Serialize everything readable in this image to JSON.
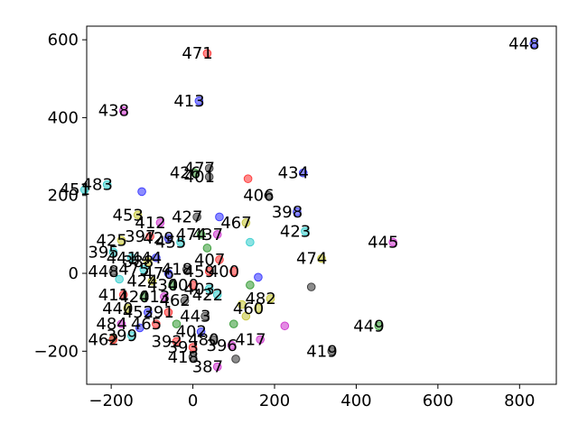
{
  "chart_data": {
    "type": "scatter",
    "title": "",
    "xlabel": "",
    "ylabel": "",
    "xlim": [
      -260,
      890
    ],
    "ylim": [
      -285,
      635
    ],
    "grid": false,
    "xticks": [
      {
        "value": -200,
        "label": "−200"
      },
      {
        "value": 0,
        "label": "0"
      },
      {
        "value": 200,
        "label": "200"
      },
      {
        "value": 400,
        "label": "400"
      },
      {
        "value": 600,
        "label": "600"
      },
      {
        "value": 800,
        "label": "800"
      }
    ],
    "yticks": [
      {
        "value": -200,
        "label": "−200"
      },
      {
        "value": 0,
        "label": "0"
      },
      {
        "value": 200,
        "label": "200"
      },
      {
        "value": 400,
        "label": "400"
      },
      {
        "value": 600,
        "label": "600"
      }
    ],
    "colors": {
      "blue": "#4040ff",
      "red": "#ff4040",
      "green": "#40a040",
      "magenta": "#d040d0",
      "cyan": "#40d0d0",
      "olive": "#c8c840",
      "gray": "#404040"
    },
    "points": [
      {
        "x": 835,
        "y": 590,
        "label": "448",
        "color": "blue"
      },
      {
        "x": 35,
        "y": 565,
        "label": "471",
        "color": "red"
      },
      {
        "x": 15,
        "y": 443,
        "label": "413",
        "color": "blue"
      },
      {
        "x": -170,
        "y": 418,
        "label": "438",
        "color": "magenta"
      },
      {
        "x": 270,
        "y": 258,
        "label": "434",
        "color": "blue"
      },
      {
        "x": 40,
        "y": 248,
        "label": "401",
        "color": "gray"
      },
      {
        "x": 135,
        "y": 243,
        "label": "",
        "color": "red"
      },
      {
        "x": 5,
        "y": 258,
        "label": "426",
        "color": "green"
      },
      {
        "x": 40,
        "y": 270,
        "label": "477",
        "color": "gray"
      },
      {
        "x": -210,
        "y": 228,
        "label": "483",
        "color": "cyan"
      },
      {
        "x": -125,
        "y": 210,
        "label": "",
        "color": "blue"
      },
      {
        "x": -265,
        "y": 215,
        "label": "451",
        "color": "cyan"
      },
      {
        "x": 185,
        "y": 200,
        "label": "406",
        "color": "gray"
      },
      {
        "x": 255,
        "y": 158,
        "label": "398",
        "color": "blue"
      },
      {
        "x": -135,
        "y": 150,
        "label": "453",
        "color": "olive"
      },
      {
        "x": 10,
        "y": 145,
        "label": "427",
        "color": "gray"
      },
      {
        "x": 65,
        "y": 145,
        "label": "",
        "color": "blue"
      },
      {
        "x": 130,
        "y": 130,
        "label": "467",
        "color": "olive"
      },
      {
        "x": -80,
        "y": 130,
        "label": "412",
        "color": "magenta"
      },
      {
        "x": 20,
        "y": 100,
        "label": "474",
        "color": "green"
      },
      {
        "x": 60,
        "y": 100,
        "label": "437",
        "color": "magenta"
      },
      {
        "x": 275,
        "y": 108,
        "label": "423",
        "color": "cyan"
      },
      {
        "x": 140,
        "y": 80,
        "label": "",
        "color": "cyan"
      },
      {
        "x": 490,
        "y": 80,
        "label": "445",
        "color": "magenta"
      },
      {
        "x": -175,
        "y": 85,
        "label": "425",
        "color": "olive"
      },
      {
        "x": -105,
        "y": 95,
        "label": "397",
        "color": "red"
      },
      {
        "x": -60,
        "y": 90,
        "label": "429",
        "color": "blue"
      },
      {
        "x": -30,
        "y": 80,
        "label": "455",
        "color": "cyan"
      },
      {
        "x": 35,
        "y": 65,
        "label": "",
        "color": "green"
      },
      {
        "x": -195,
        "y": 55,
        "label": "395",
        "color": "cyan"
      },
      {
        "x": -150,
        "y": 40,
        "label": "441",
        "color": "cyan"
      },
      {
        "x": -110,
        "y": 30,
        "label": "388",
        "color": "olive"
      },
      {
        "x": -90,
        "y": 40,
        "label": "444",
        "color": "blue"
      },
      {
        "x": 315,
        "y": 38,
        "label": "474",
        "color": "olive"
      },
      {
        "x": 65,
        "y": 35,
        "label": "407",
        "color": "red"
      },
      {
        "x": -120,
        "y": 10,
        "label": "475",
        "color": "cyan"
      },
      {
        "x": -60,
        "y": 0,
        "label": "476",
        "color": "blue"
      },
      {
        "x": -15,
        "y": 10,
        "label": "418",
        "color": "gray"
      },
      {
        "x": 40,
        "y": 5,
        "label": "459",
        "color": "red"
      },
      {
        "x": 100,
        "y": 5,
        "label": "400",
        "color": "red"
      },
      {
        "x": 160,
        "y": -10,
        "label": "",
        "color": "blue"
      },
      {
        "x": -195,
        "y": 5,
        "label": "448",
        "color": "gray"
      },
      {
        "x": -180,
        "y": -15,
        "label": "",
        "color": "cyan"
      },
      {
        "x": -100,
        "y": -20,
        "label": "424",
        "color": "olive"
      },
      {
        "x": -50,
        "y": -30,
        "label": "430",
        "color": "green"
      },
      {
        "x": 0,
        "y": -30,
        "label": "400",
        "color": "red"
      },
      {
        "x": 40,
        "y": -40,
        "label": "403",
        "color": "cyan"
      },
      {
        "x": 140,
        "y": -30,
        "label": "",
        "color": "green"
      },
      {
        "x": 290,
        "y": -35,
        "label": "",
        "color": "gray"
      },
      {
        "x": 190,
        "y": -65,
        "label": "482",
        "color": "olive"
      },
      {
        "x": -170,
        "y": -55,
        "label": "411",
        "color": "red"
      },
      {
        "x": -120,
        "y": -60,
        "label": "420",
        "color": "green"
      },
      {
        "x": -70,
        "y": -60,
        "label": "413",
        "color": "magenta"
      },
      {
        "x": -20,
        "y": -70,
        "label": "462",
        "color": "gray"
      },
      {
        "x": 60,
        "y": -55,
        "label": "422",
        "color": "cyan"
      },
      {
        "x": 120,
        "y": -80,
        "label": "",
        "color": "olive"
      },
      {
        "x": 160,
        "y": -90,
        "label": "460",
        "color": "olive"
      },
      {
        "x": -160,
        "y": -90,
        "label": "440",
        "color": "olive"
      },
      {
        "x": -110,
        "y": -100,
        "label": "452",
        "color": "blue"
      },
      {
        "x": -60,
        "y": -100,
        "label": "391",
        "color": "red"
      },
      {
        "x": 30,
        "y": -110,
        "label": "443",
        "color": "gray"
      },
      {
        "x": 130,
        "y": -110,
        "label": "",
        "color": "olive"
      },
      {
        "x": -175,
        "y": -130,
        "label": "484",
        "color": "magenta"
      },
      {
        "x": -130,
        "y": -140,
        "label": "",
        "color": "blue"
      },
      {
        "x": -90,
        "y": -130,
        "label": "465",
        "color": "red"
      },
      {
        "x": -40,
        "y": -130,
        "label": "",
        "color": "green"
      },
      {
        "x": 20,
        "y": -150,
        "label": "402",
        "color": "blue"
      },
      {
        "x": 100,
        "y": -130,
        "label": "",
        "color": "green"
      },
      {
        "x": 225,
        "y": -135,
        "label": "",
        "color": "magenta"
      },
      {
        "x": 455,
        "y": -135,
        "label": "449",
        "color": "green"
      },
      {
        "x": -150,
        "y": -160,
        "label": "399",
        "color": "cyan"
      },
      {
        "x": -40,
        "y": -175,
        "label": "392",
        "color": "red"
      },
      {
        "x": 50,
        "y": -170,
        "label": "480",
        "color": "gray"
      },
      {
        "x": 165,
        "y": -170,
        "label": "417",
        "color": "magenta"
      },
      {
        "x": -195,
        "y": -168,
        "label": "",
        "color": "green"
      },
      {
        "x": -195,
        "y": -170,
        "label": "462",
        "color": "red"
      },
      {
        "x": 0,
        "y": -190,
        "label": "393",
        "color": "red"
      },
      {
        "x": 95,
        "y": -185,
        "label": "396",
        "color": "magenta"
      },
      {
        "x": 340,
        "y": -200,
        "label": "419",
        "color": "gray"
      },
      {
        "x": 0,
        "y": -215,
        "label": "418",
        "color": "gray"
      },
      {
        "x": 60,
        "y": -240,
        "label": "387",
        "color": "magenta"
      },
      {
        "x": 105,
        "y": -220,
        "label": "",
        "color": "gray"
      }
    ]
  }
}
